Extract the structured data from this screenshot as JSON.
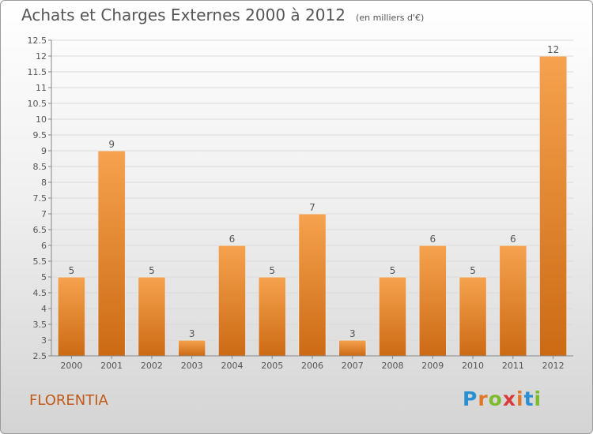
{
  "title": "Achats et Charges Externes 2000 à 2012",
  "subtitle": "(en milliers d'€)",
  "commune": "FLORENTIA",
  "logo": {
    "letters": [
      "P",
      "r",
      "o",
      "x",
      "i",
      "t",
      "i"
    ],
    "colors": [
      "#2a8fd1",
      "#e0782a",
      "#7dbb2c",
      "#d63a3a",
      "#e0782a",
      "#2a8fd1",
      "#7dbb2c"
    ]
  },
  "colors": {
    "bar_light": "#f6a24e",
    "bar_dark": "#cc6a14",
    "text": "#555555",
    "grid": "#d9d9d9"
  },
  "chart_data": {
    "type": "bar",
    "categories": [
      "2000",
      "2001",
      "2002",
      "2003",
      "2004",
      "2005",
      "2006",
      "2007",
      "2008",
      "2009",
      "2010",
      "2011",
      "2012"
    ],
    "values": [
      5,
      9,
      5,
      3,
      6,
      5,
      7,
      3,
      5,
      6,
      5,
      6,
      12
    ],
    "ylim": [
      2.5,
      12.5
    ],
    "yticks": [
      "2.5",
      "3",
      "3.5",
      "4",
      "4.5",
      "5",
      "5.5",
      "6",
      "6.5",
      "7",
      "7.5",
      "8",
      "8.5",
      "9",
      "9.5",
      "10",
      "10.5",
      "11",
      "11.5",
      "12",
      "12.5"
    ],
    "grid": true
  }
}
